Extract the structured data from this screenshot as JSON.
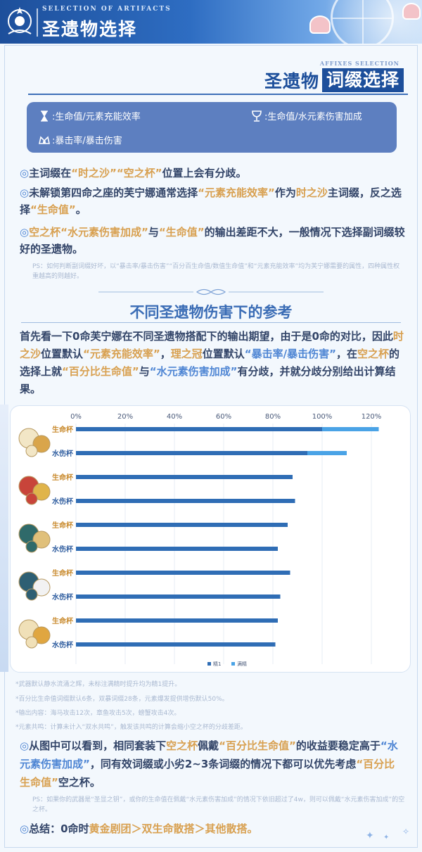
{
  "header": {
    "subtitle": "SELECTION OF ARTIFACTS",
    "title": "圣遗物选择"
  },
  "section": {
    "subtitle": "AFFIXES SELECTION",
    "title_left": "圣遗物",
    "title_right": "词缀选择"
  },
  "legend": {
    "sands": ":生命值/元素充能效率",
    "goblet": ":生命值/水元素伤害加成",
    "circlet": ":暴击率/暴击伤害"
  },
  "paras": {
    "p1": {
      "bullet": "◎",
      "a": "主词缀在",
      "b": "“时之沙”",
      "c": "“空之杯”",
      "d": "位置上会有分歧。"
    },
    "p2": {
      "bullet": "◎",
      "a": "未解锁第四命之座的芙宁娜通常选择",
      "b": "“元素充能效率”",
      "c": "作为",
      "d": "时之沙",
      "e": "主词缀，反之选择",
      "f": "“生命值”",
      "g": "。"
    },
    "p3": {
      "bullet": "◎",
      "a": "空之杯",
      "b": "“水元素伤害加成”",
      "c": "与",
      "d": "“生命值”",
      "e": "的输出差距不大，一般情况下选择副词缀较好的圣遗物。"
    },
    "ps1": "PS：如何判断副词缀好坏，以“暴击率/暴击伤害”“百分百生命值/数值生命值”和“元素充能效率”均为芙宁娜需要的属性，四种属性权重越高的则越好。"
  },
  "section2": {
    "title": "不同圣遗物伤害下的参考",
    "intro_a": "首先看一下0命芙宁娜在不同圣遗物搭配下的输出期望，由于是0命的对比，因此",
    "intro_b": "时之沙",
    "intro_c": "位置默认",
    "intro_d": "“元素充能效率”",
    "intro_e": "，",
    "intro_f": "理之冠",
    "intro_g": "位置默认",
    "intro_h": "“暴击率/暴击伤害”",
    "intro_i": "，在",
    "intro_j": "空之杯",
    "intro_k": "的选择上就",
    "intro_l": "“百分比生命值”",
    "intro_m": "与",
    "intro_n": "“水元素伤害加成”",
    "intro_o": "有分歧，并就分歧分别给出计算结果。"
  },
  "chart_data": {
    "type": "bar",
    "orientation": "horizontal",
    "stacked": true,
    "x_ticks": [
      "0%",
      "20%",
      "40%",
      "60%",
      "80%",
      "100%",
      "120%"
    ],
    "xlim": [
      0,
      130
    ],
    "categories": [
      "生命杯",
      "水伤杯",
      "生命杯",
      "水伤杯",
      "生命杯",
      "水伤杯",
      "生命杯",
      "水伤杯",
      "生命杯",
      "水伤杯"
    ],
    "series": [
      {
        "name": "精1",
        "color": "#2f6db5",
        "values": [
          100,
          94,
          88,
          89,
          86,
          82,
          87,
          83,
          82,
          81
        ]
      },
      {
        "name": "满精",
        "color": "#4aa3e6",
        "values": [
          23,
          16,
          0,
          0,
          0,
          0,
          0,
          0,
          0,
          0
        ]
      }
    ],
    "grid": true,
    "legend_position": "bottom"
  },
  "footnotes": {
    "f1": "*武器默认静水流涌之辉，未标注满精时提升均为精1提升。",
    "f2": "*百分比生命值词缀默认6条，双暴词缀28条，元素爆发提供增伤默认50%。",
    "f3": "*输出内容：海马攻击12次，章鱼攻击5次，螃蟹攻击4次。",
    "f4": "*元素共鸣：计算未计入“双水共鸣”，触发该共鸣的计算会缩小空之杯的分歧差距。"
  },
  "conclusion": {
    "bullet": "◎",
    "a": "从图中可以看到，相同套装下",
    "b": "空之杯",
    "c": "佩戴",
    "d": "“百分比生命值”",
    "e": "的收益要稳定高于",
    "f": "“水元素伤害加成”",
    "g": "，同有效词缀或小劣2~3条词缀的情况下都可以优先考虑",
    "h": "“百分比生命值”",
    "i": "空之杯。",
    "ps": "PS：如果你的武器是“圣显之钥”，或你的生命值在佩戴“水元素伤害加成”的情况下依旧超过了4w，则可以佩戴“水元素伤害加成”的空之杯。",
    "summary_bullet": "◎",
    "summary_a": "总结：0命时",
    "summary_b": "黄金剧团＞双生命散搭＞其他散搭。"
  },
  "colors": {
    "primary": "#1d4f9b",
    "gold": "#d8a050",
    "blue_hl": "#4f86d4"
  }
}
